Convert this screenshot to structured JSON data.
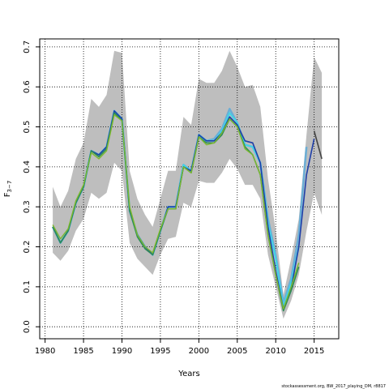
{
  "chart_data": {
    "type": "line",
    "xlabel": "Years",
    "ylabel": "F",
    "ylabel_sub": "3−7",
    "xlim": [
      1979.3,
      2018.2
    ],
    "ylim": [
      -0.03,
      0.72
    ],
    "x_ticks": [
      1980,
      1985,
      1990,
      1995,
      2000,
      2005,
      2010,
      2015
    ],
    "y_ticks": [
      0.0,
      0.1,
      0.2,
      0.3,
      0.4,
      0.5,
      0.6,
      0.7
    ],
    "x_tick_labels": [
      "1980",
      "1985",
      "1990",
      "1995",
      "2000",
      "2005",
      "2010",
      "2015"
    ],
    "y_tick_labels": [
      "0.0",
      "0.1",
      "0.2",
      "0.3",
      "0.4",
      "0.5",
      "0.6",
      "0.7"
    ],
    "grid": true,
    "credit": "stockassessment.org, BW_2017_playing_DM, r8817",
    "band": {
      "color": "#bebebe",
      "x": [
        1981,
        1982,
        1983,
        1984,
        1985,
        1986,
        1987,
        1988,
        1989,
        1990,
        1991,
        1992,
        1993,
        1994,
        1995,
        1996,
        1997,
        1998,
        1999,
        2000,
        2001,
        2002,
        2003,
        2004,
        2005,
        2006,
        2007,
        2008,
        2009,
        2010,
        2011,
        2012,
        2013,
        2014,
        2015,
        2016
      ],
      "upper": [
        0.35,
        0.3,
        0.34,
        0.42,
        0.46,
        0.57,
        0.55,
        0.58,
        0.69,
        0.685,
        0.39,
        0.32,
        0.28,
        0.25,
        0.32,
        0.39,
        0.39,
        0.525,
        0.505,
        0.62,
        0.61,
        0.61,
        0.64,
        0.69,
        0.65,
        0.6,
        0.605,
        0.55,
        0.37,
        0.24,
        0.08,
        0.17,
        0.27,
        0.48,
        0.675,
        0.635
      ],
      "lower": [
        0.185,
        0.165,
        0.19,
        0.24,
        0.27,
        0.335,
        0.32,
        0.335,
        0.41,
        0.39,
        0.21,
        0.17,
        0.15,
        0.13,
        0.18,
        0.22,
        0.225,
        0.31,
        0.3,
        0.365,
        0.36,
        0.36,
        0.385,
        0.42,
        0.395,
        0.355,
        0.355,
        0.32,
        0.18,
        0.1,
        0.02,
        0.065,
        0.13,
        0.24,
        0.335,
        0.28
      ]
    },
    "x": [
      1981,
      1982,
      1983,
      1984,
      1985,
      1986,
      1987,
      1988,
      1989,
      1990,
      1991,
      1992,
      1993,
      1994,
      1995,
      1996,
      1997,
      1998,
      1999,
      2000,
      2001,
      2002,
      2003,
      2004,
      2005,
      2006,
      2007,
      2008,
      2009,
      2010,
      2011,
      2012,
      2013,
      2014,
      2015,
      2016
    ],
    "series": [
      {
        "color": "#6aaed6",
        "width": 2.5,
        "values": [
          0.25,
          0.21,
          0.24,
          0.31,
          0.35,
          0.44,
          0.43,
          0.45,
          0.54,
          0.52,
          0.29,
          0.23,
          0.2,
          0.18,
          0.24,
          0.3,
          0.3,
          0.405,
          0.39,
          0.48,
          0.465,
          0.47,
          0.495,
          0.545,
          0.51,
          0.455,
          0.45,
          0.41,
          0.27,
          0.18,
          0.06,
          0.12,
          0.23,
          0.45,
          null,
          null
        ]
      },
      {
        "color": "#42d4e8",
        "width": 2,
        "values": [
          0.25,
          0.21,
          0.24,
          0.31,
          0.35,
          0.44,
          0.43,
          0.45,
          0.54,
          0.52,
          0.29,
          0.23,
          0.2,
          0.18,
          0.24,
          0.3,
          0.3,
          0.405,
          0.39,
          0.48,
          0.465,
          0.465,
          0.49,
          0.535,
          0.51,
          0.455,
          0.45,
          0.41,
          0.26,
          0.17,
          0.05,
          0.11,
          0.2,
          null,
          null,
          null
        ]
      },
      {
        "color": "#1f3fa8",
        "width": 1.6,
        "values": [
          0.25,
          0.21,
          0.24,
          0.31,
          0.35,
          0.44,
          0.43,
          0.45,
          0.54,
          0.52,
          0.29,
          0.23,
          0.2,
          0.18,
          0.24,
          0.3,
          0.3,
          0.4,
          0.39,
          0.48,
          0.465,
          0.465,
          0.485,
          0.525,
          0.505,
          0.465,
          0.46,
          0.41,
          0.25,
          0.14,
          0.045,
          0.095,
          0.2,
          0.38,
          0.47,
          null
        ]
      },
      {
        "color": "#2e8b57",
        "width": 1.6,
        "values": [
          0.25,
          0.21,
          0.24,
          0.31,
          0.35,
          0.44,
          0.425,
          0.445,
          0.535,
          0.515,
          0.29,
          0.225,
          0.195,
          0.18,
          0.24,
          0.295,
          0.295,
          0.4,
          0.385,
          0.475,
          0.46,
          0.46,
          0.48,
          0.52,
          0.5,
          0.45,
          0.43,
          0.38,
          0.23,
          0.13,
          0.04,
          0.09,
          0.15,
          null,
          null,
          null
        ]
      },
      {
        "color": "#7cb82f",
        "width": 1.4,
        "values": [
          0.255,
          0.22,
          0.245,
          0.315,
          0.355,
          0.435,
          0.42,
          0.44,
          0.53,
          0.515,
          0.3,
          0.23,
          0.2,
          0.185,
          0.245,
          0.295,
          0.295,
          0.4,
          0.385,
          0.475,
          0.455,
          0.46,
          0.485,
          0.52,
          0.5,
          0.445,
          0.43,
          0.38,
          0.23,
          0.13,
          0.045,
          0.1,
          0.16,
          null,
          null,
          null
        ]
      },
      {
        "color": "#444444",
        "width": 1.6,
        "values": [
          null,
          null,
          null,
          null,
          null,
          null,
          null,
          null,
          null,
          null,
          null,
          null,
          null,
          null,
          null,
          null,
          null,
          null,
          null,
          null,
          null,
          null,
          null,
          null,
          null,
          null,
          null,
          null,
          null,
          null,
          null,
          null,
          null,
          null,
          0.49,
          0.42
        ]
      }
    ]
  }
}
